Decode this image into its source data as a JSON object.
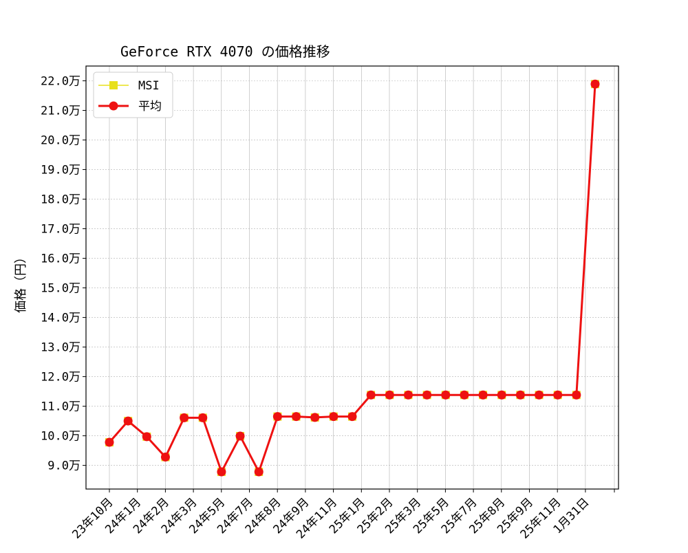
{
  "chart_data": {
    "type": "line",
    "title": "GeForce RTX 4070 の価格推移",
    "xlabel": "",
    "ylabel": "価格（円）",
    "y_unit_suffix": "万",
    "ylim": [
      8.2,
      22.5
    ],
    "y_ticks": [
      "9.0万",
      "10.0万",
      "11.0万",
      "12.0万",
      "13.0万",
      "14.0万",
      "15.0万",
      "16.0万",
      "17.0万",
      "18.0万",
      "19.0万",
      "20.0万",
      "21.0万",
      "22.0万"
    ],
    "x_tick_labels": [
      "23年10月",
      "24年1月",
      "24年2月",
      "24年3月",
      "24年5月",
      "24年7月",
      "24年8月",
      "24年9月",
      "24年11月",
      "25年1月",
      "25年2月",
      "25年3月",
      "25年5月",
      "25年7月",
      "25年8月",
      "25年9月",
      "25年11月",
      "1月31日"
    ],
    "grid": true,
    "legend_position": "top-left",
    "series": [
      {
        "name": "MSI",
        "marker": "square",
        "color": "#e8e01a",
        "values": [
          9.78,
          10.5,
          9.97,
          9.28,
          10.61,
          10.61,
          8.78,
          9.99,
          8.78,
          10.65,
          10.65,
          10.62,
          10.65,
          10.65,
          11.38,
          11.38,
          11.38,
          11.38,
          11.38,
          11.38,
          11.38,
          11.38,
          11.38,
          11.38,
          11.38,
          11.38,
          21.89
        ]
      },
      {
        "name": "平均",
        "marker": "circle",
        "color": "#ee1111",
        "values": [
          9.78,
          10.5,
          9.97,
          9.28,
          10.61,
          10.61,
          8.78,
          9.99,
          8.78,
          10.65,
          10.65,
          10.62,
          10.65,
          10.65,
          11.38,
          11.38,
          11.38,
          11.38,
          11.38,
          11.38,
          11.38,
          11.38,
          11.38,
          11.38,
          11.38,
          11.38,
          21.89
        ]
      }
    ]
  }
}
